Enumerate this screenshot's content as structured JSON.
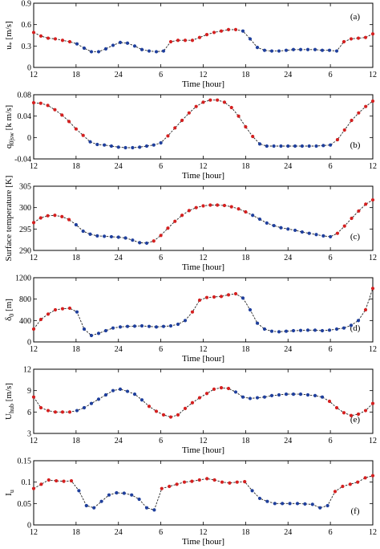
{
  "chart_data": [
    {
      "type": "line",
      "panel_label": "(a)",
      "ylabel": "u* [m/s]",
      "ylabel_base": "u",
      "ylabel_sub": "*",
      "ylabel_unit": " [m/s]",
      "xlabel": "Time [hour]",
      "ylim": [
        0,
        0.9
      ],
      "yticks": [
        0,
        0.3,
        0.6,
        0.9
      ],
      "ytick_labels": [
        "0",
        "0.3",
        "0.6",
        "0.9"
      ],
      "xtick_labels": [
        "12",
        "18",
        "24",
        "6",
        "12",
        "18",
        "24",
        "6",
        "12"
      ],
      "x_range": [
        0,
        48
      ],
      "values": [
        0.49,
        0.44,
        0.41,
        0.4,
        0.38,
        0.36,
        0.33,
        0.27,
        0.22,
        0.22,
        0.26,
        0.31,
        0.35,
        0.34,
        0.3,
        0.25,
        0.23,
        0.22,
        0.23,
        0.36,
        0.38,
        0.38,
        0.38,
        0.42,
        0.46,
        0.49,
        0.51,
        0.53,
        0.53,
        0.51,
        0.4,
        0.28,
        0.24,
        0.23,
        0.23,
        0.24,
        0.25,
        0.25,
        0.25,
        0.25,
        0.24,
        0.24,
        0.23,
        0.36,
        0.4,
        0.41,
        0.42,
        0.47
      ],
      "colors": [
        "r",
        "r",
        "r",
        "r",
        "r",
        "r",
        "b",
        "b",
        "b",
        "b",
        "b",
        "b",
        "b",
        "b",
        "b",
        "b",
        "b",
        "b",
        "b",
        "r",
        "r",
        "r",
        "r",
        "r",
        "r",
        "r",
        "r",
        "r",
        "r",
        "b",
        "b",
        "b",
        "b",
        "b",
        "b",
        "b",
        "b",
        "b",
        "b",
        "b",
        "b",
        "b",
        "b",
        "r",
        "r",
        "r",
        "r",
        "r"
      ]
    },
    {
      "type": "line",
      "panel_label": "(b)",
      "ylabel": "q0|sw [k m/s]",
      "ylabel_base": "q",
      "ylabel_sub": "0|sw",
      "ylabel_unit": " [k m/s]",
      "xlabel": "Time [hour]",
      "ylim": [
        -0.04,
        0.08
      ],
      "yticks": [
        -0.04,
        0,
        0.04,
        0.08
      ],
      "ytick_labels": [
        "-0.04",
        "0",
        "0.04",
        "0.08"
      ],
      "xtick_labels": [
        "12",
        "18",
        "24",
        "6",
        "12",
        "18",
        "24",
        "6",
        "12"
      ],
      "x_range": [
        0,
        48
      ],
      "values": [
        0.065,
        0.064,
        0.06,
        0.052,
        0.042,
        0.03,
        0.016,
        0.004,
        -0.008,
        -0.013,
        -0.014,
        -0.016,
        -0.018,
        -0.019,
        -0.019,
        -0.018,
        -0.016,
        -0.014,
        -0.01,
        0.003,
        0.018,
        0.032,
        0.046,
        0.058,
        0.066,
        0.07,
        0.07,
        0.066,
        0.056,
        0.04,
        0.02,
        0.002,
        -0.012,
        -0.016,
        -0.016,
        -0.016,
        -0.016,
        -0.016,
        -0.016,
        -0.016,
        -0.016,
        -0.015,
        -0.014,
        -0.004,
        0.014,
        0.032,
        0.046,
        0.058,
        0.068
      ],
      "colors": [
        "r",
        "r",
        "r",
        "r",
        "r",
        "r",
        "r",
        "r",
        "b",
        "b",
        "b",
        "b",
        "b",
        "b",
        "b",
        "b",
        "b",
        "b",
        "b",
        "r",
        "r",
        "r",
        "r",
        "r",
        "r",
        "r",
        "r",
        "r",
        "r",
        "r",
        "r",
        "r",
        "b",
        "b",
        "b",
        "b",
        "b",
        "b",
        "b",
        "b",
        "b",
        "b",
        "b",
        "r",
        "r",
        "r",
        "r",
        "r",
        "r"
      ]
    },
    {
      "type": "line",
      "panel_label": "(c)",
      "ylabel": "Surface temperature [K]",
      "ylabel_base": "Surface temperature [K]",
      "ylabel_sub": "",
      "ylabel_unit": "",
      "xlabel": "Time [hour]",
      "ylim": [
        290,
        305
      ],
      "yticks": [
        290,
        295,
        300,
        305
      ],
      "ytick_labels": [
        "290",
        "295",
        "300",
        "305"
      ],
      "xtick_labels": [
        "12",
        "18",
        "24",
        "6",
        "12",
        "18",
        "24",
        "6",
        "12"
      ],
      "x_range": [
        0,
        48
      ],
      "values": [
        296.5,
        297.6,
        298.1,
        298.2,
        297.9,
        297.2,
        296,
        294.5,
        293.8,
        293.4,
        293.3,
        293.2,
        293.1,
        292.9,
        292.4,
        291.8,
        291.7,
        292.2,
        293.5,
        295.2,
        296.8,
        298.2,
        299.3,
        300,
        300.4,
        300.6,
        300.6,
        300.5,
        300.2,
        299.7,
        299,
        298.2,
        297.3,
        296.4,
        295.8,
        295.3,
        295,
        294.7,
        294.3,
        294,
        293.7,
        293.4,
        293.2,
        294,
        295.7,
        297.5,
        299.2,
        300.8,
        301.8
      ],
      "colors": [
        "r",
        "r",
        "r",
        "r",
        "r",
        "r",
        "b",
        "b",
        "b",
        "b",
        "b",
        "b",
        "b",
        "b",
        "b",
        "b",
        "b",
        "r",
        "r",
        "r",
        "r",
        "r",
        "r",
        "r",
        "r",
        "r",
        "r",
        "r",
        "r",
        "r",
        "r",
        "b",
        "b",
        "b",
        "b",
        "b",
        "b",
        "b",
        "b",
        "b",
        "b",
        "b",
        "b",
        "r",
        "r",
        "r",
        "r",
        "r",
        "r"
      ]
    },
    {
      "type": "line",
      "panel_label": "(d)",
      "ylabel": "δ0 [m]",
      "ylabel_base": "δ",
      "ylabel_sub": "0",
      "ylabel_unit": " [m]",
      "xlabel": "Time [hour]",
      "ylim": [
        0,
        1200
      ],
      "yticks": [
        0,
        400,
        800,
        1200
      ],
      "ytick_labels": [
        "0",
        "400",
        "800",
        "1200"
      ],
      "xtick_labels": [
        "12",
        "18",
        "24",
        "6",
        "12",
        "18",
        "24",
        "6",
        "12"
      ],
      "x_range": [
        0,
        48
      ],
      "values": [
        240,
        420,
        520,
        600,
        620,
        630,
        560,
        240,
        120,
        160,
        210,
        260,
        280,
        290,
        295,
        300,
        290,
        280,
        290,
        300,
        330,
        400,
        560,
        780,
        830,
        840,
        850,
        880,
        900,
        820,
        600,
        350,
        240,
        200,
        190,
        200,
        210,
        215,
        220,
        220,
        210,
        220,
        240,
        260,
        310,
        400,
        600,
        1000
      ],
      "colors": [
        "r",
        "r",
        "r",
        "r",
        "r",
        "r",
        "b",
        "b",
        "b",
        "b",
        "b",
        "b",
        "b",
        "b",
        "b",
        "b",
        "b",
        "b",
        "b",
        "b",
        "b",
        "b",
        "r",
        "r",
        "r",
        "r",
        "r",
        "r",
        "r",
        "b",
        "b",
        "b",
        "b",
        "b",
        "b",
        "b",
        "b",
        "b",
        "b",
        "b",
        "b",
        "b",
        "b",
        "b",
        "b",
        "b",
        "r",
        "r"
      ]
    },
    {
      "type": "line",
      "panel_label": "(e)",
      "ylabel": "Uhub [m/s]",
      "ylabel_base": "U",
      "ylabel_sub": "hub",
      "ylabel_unit": " [m/s]",
      "xlabel": "Time [hour]",
      "ylim": [
        3,
        12
      ],
      "yticks": [
        3,
        6,
        9,
        12
      ],
      "ytick_labels": [
        "3",
        "6",
        "9",
        "12"
      ],
      "xtick_labels": [
        "12",
        "18",
        "24",
        "6",
        "12",
        "18",
        "24",
        "6",
        "12"
      ],
      "x_range": [
        0,
        48
      ],
      "values": [
        8.1,
        6.6,
        6.2,
        6,
        6,
        6,
        6.2,
        6.6,
        7.2,
        7.8,
        8.4,
        9,
        9.2,
        8.9,
        8.5,
        7.7,
        6.8,
        6.1,
        5.6,
        5.3,
        5.6,
        6.5,
        7.3,
        8,
        8.6,
        9.2,
        9.4,
        9.3,
        8.8,
        8.1,
        7.9,
        8,
        8.1,
        8.3,
        8.4,
        8.5,
        8.5,
        8.5,
        8.4,
        8.3,
        8.1,
        7.5,
        6.6,
        5.9,
        5.5,
        5.7,
        6.2,
        7.2
      ],
      "colors": [
        "r",
        "r",
        "r",
        "r",
        "r",
        "r",
        "b",
        "b",
        "b",
        "b",
        "b",
        "b",
        "b",
        "b",
        "b",
        "b",
        "r",
        "r",
        "r",
        "r",
        "r",
        "r",
        "r",
        "r",
        "r",
        "r",
        "r",
        "r",
        "b",
        "b",
        "b",
        "b",
        "b",
        "b",
        "b",
        "b",
        "b",
        "b",
        "b",
        "b",
        "b",
        "r",
        "r",
        "r",
        "r",
        "r",
        "r",
        "r"
      ]
    },
    {
      "type": "line",
      "panel_label": "(f)",
      "ylabel": "Iu",
      "ylabel_base": "I",
      "ylabel_sub": "u",
      "ylabel_unit": "",
      "xlabel": "Time [hour]",
      "ylim": [
        0,
        0.15
      ],
      "yticks": [
        0,
        0.05,
        0.1,
        0.15
      ],
      "ytick_labels": [
        "0",
        "0.05",
        "0.1",
        "0.15"
      ],
      "xtick_labels": [
        "12",
        "18",
        "24",
        "6",
        "12",
        "18",
        "24",
        "6",
        "12"
      ],
      "x_range": [
        0,
        48
      ],
      "values": [
        0.085,
        0.095,
        0.105,
        0.103,
        0.102,
        0.103,
        0.08,
        0.045,
        0.04,
        0.055,
        0.07,
        0.075,
        0.074,
        0.07,
        0.06,
        0.04,
        0.035,
        0.085,
        0.09,
        0.095,
        0.1,
        0.102,
        0.105,
        0.108,
        0.105,
        0.1,
        0.098,
        0.1,
        0.101,
        0.08,
        0.062,
        0.055,
        0.05,
        0.05,
        0.05,
        0.05,
        0.049,
        0.048,
        0.04,
        0.045,
        0.078,
        0.09,
        0.095,
        0.1,
        0.11,
        0.115
      ],
      "colors": [
        "r",
        "r",
        "r",
        "r",
        "r",
        "r",
        "b",
        "b",
        "b",
        "b",
        "b",
        "b",
        "b",
        "b",
        "b",
        "b",
        "b",
        "r",
        "r",
        "r",
        "r",
        "r",
        "r",
        "r",
        "r",
        "r",
        "r",
        "r",
        "r",
        "b",
        "b",
        "b",
        "b",
        "b",
        "b",
        "b",
        "b",
        "b",
        "b",
        "b",
        "r",
        "r",
        "r",
        "r",
        "r",
        "r"
      ]
    }
  ],
  "marker_colors": {
    "r": "#d42020",
    "b": "#1f3f9c"
  }
}
